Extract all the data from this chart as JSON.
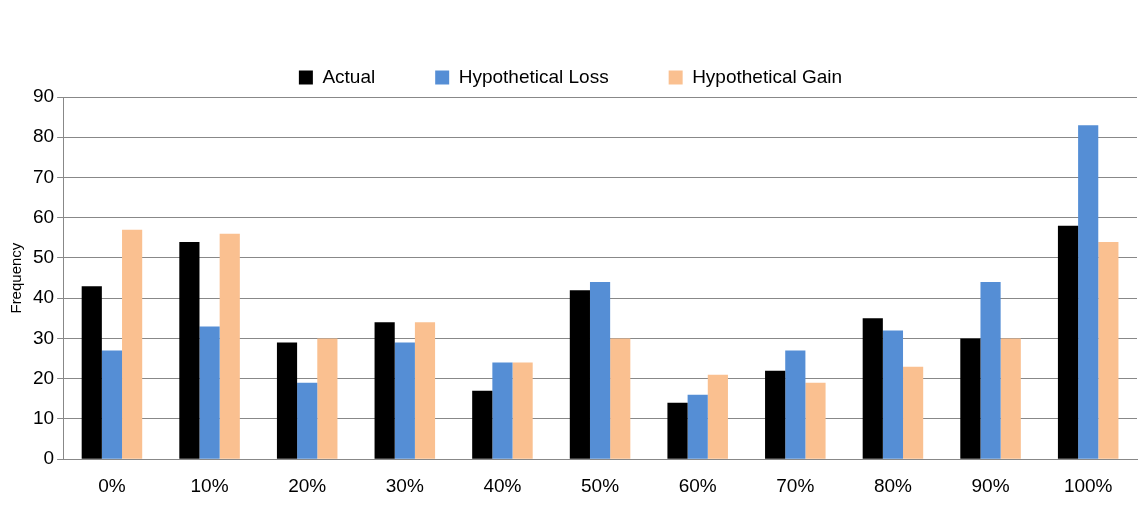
{
  "chart_data": {
    "type": "bar",
    "ylabel": "Frequency",
    "categories": [
      "0%",
      "10%",
      "20%",
      "30%",
      "40%",
      "50%",
      "60%",
      "70%",
      "80%",
      "90%",
      "100%"
    ],
    "series": [
      {
        "name": "Actual",
        "color": "#000000",
        "values": [
          43,
          54,
          29,
          34,
          17,
          42,
          14,
          22,
          35,
          30,
          58
        ]
      },
      {
        "name": "Hypothetical Loss",
        "color": "#558ed5",
        "values": [
          27,
          33,
          19,
          29,
          24,
          44,
          16,
          27,
          32,
          44,
          83
        ]
      },
      {
        "name": "Hypothetical Gain",
        "color": "#fac090",
        "values": [
          57,
          56,
          30,
          34,
          24,
          30,
          21,
          19,
          23,
          30,
          54
        ]
      }
    ],
    "ylim": [
      0,
      90
    ],
    "yticks": [
      0,
      10,
      20,
      30,
      40,
      50,
      60,
      70,
      80,
      90
    ],
    "grid": "y",
    "legend": "top"
  }
}
